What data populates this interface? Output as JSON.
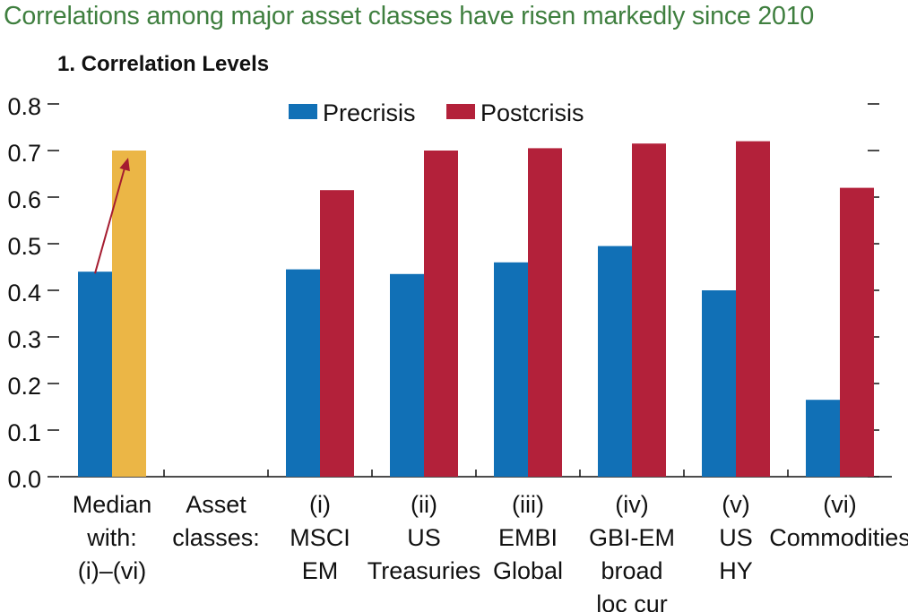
{
  "headline": "Correlations among major asset classes have risen markedly since 2010",
  "colors": {
    "headline": "#3f7f3f",
    "precrisis": "#1170b6",
    "postcrisis": "#b3213a",
    "median_post": "#ebb646",
    "arrow": "#a51c30"
  },
  "chart_data": {
    "type": "bar",
    "title": "1. Correlation Levels",
    "ylim": [
      0,
      0.8
    ],
    "yticks": [
      "0.0",
      "0.1",
      "0.2",
      "0.3",
      "0.4",
      "0.5",
      "0.6",
      "0.7",
      "0.8"
    ],
    "grid": false,
    "legend_position": "top-center",
    "categories": [
      [
        "Median",
        "with:",
        "(i)–(vi)"
      ],
      [
        "Asset",
        "classes:"
      ],
      [
        "(i)",
        "MSCI",
        "EM"
      ],
      [
        "(ii)",
        "US",
        "Treasuries"
      ],
      [
        "(iii)",
        "EMBI",
        "Global"
      ],
      [
        "(iv)",
        "GBI-EM",
        "broad",
        "loc cur"
      ],
      [
        "(v)",
        "US",
        "HY"
      ],
      [
        "(vi)",
        "Commodities"
      ]
    ],
    "series": [
      {
        "name": "Precrisis",
        "values": [
          0.44,
          null,
          0.445,
          0.435,
          0.46,
          0.495,
          0.4,
          0.165
        ]
      },
      {
        "name": "Postcrisis",
        "values": [
          0.7,
          null,
          0.615,
          0.7,
          0.705,
          0.715,
          0.72,
          0.62
        ]
      }
    ],
    "annotation": "arrow from precrisis median to postcrisis median"
  }
}
